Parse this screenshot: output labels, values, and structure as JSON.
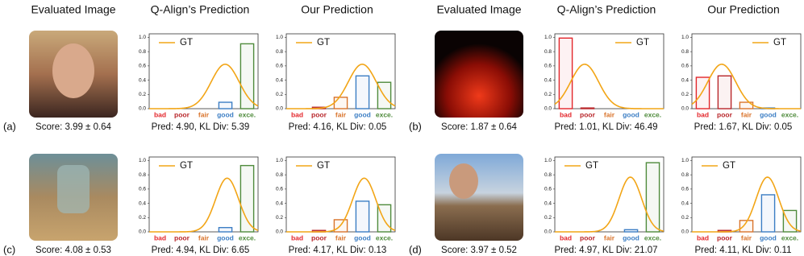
{
  "headers": [
    "Evaluated Image",
    "Q-Align’s Prediction",
    "Our Prediction",
    "Evaluated Image",
    "Q-Align’s Prediction",
    "Our Prediction"
  ],
  "panels": [
    {
      "label": "(a)",
      "score": "Score: 3.99 ± 0.64"
    },
    {
      "label": "(b)",
      "score": "Score: 1.87 ± 0.64"
    },
    {
      "label": "(c)",
      "score": "Score: 4.08 ± 0.53"
    },
    {
      "label": "(d)",
      "score": "Score: 3.97 ± 0.52"
    }
  ],
  "chart_data": [
    {
      "type": "bar",
      "caption": "Pred: 4.90, KL Div: 5.39",
      "categories": [
        "bad",
        "poor",
        "fair",
        "good",
        "exce."
      ],
      "colors": [
        "#e3262b",
        "#b8262a",
        "#d9742c",
        "#3c7ec4",
        "#4f8b3c"
      ],
      "values": [
        0,
        0,
        0,
        0.09,
        0.91
      ],
      "gt": {
        "name": "GT",
        "color": "#f2a516",
        "mean": 3.99,
        "std": 0.64
      },
      "xlim": [
        0.5,
        5.5
      ],
      "ylim": [
        0,
        1.05
      ],
      "yticks": [
        {
          "value": 0,
          "label": "0.0"
        },
        0.2,
        0.4,
        0.6,
        0.8,
        {
          "value": 1,
          "label": "1.0"
        }
      ],
      "legend": "upper left"
    },
    {
      "type": "bar",
      "caption": "Pred: 4.16, KL Div: 0.05",
      "categories": [
        "bad",
        "poor",
        "fair",
        "good",
        "exce."
      ],
      "colors": [
        "#e3262b",
        "#b8262a",
        "#d9742c",
        "#3c7ec4",
        "#4f8b3c"
      ],
      "values": [
        0,
        0.02,
        0.16,
        0.46,
        0.37
      ],
      "gt": {
        "name": "GT",
        "color": "#f2a516",
        "mean": 3.99,
        "std": 0.64
      },
      "xlim": [
        0.5,
        5.5
      ],
      "ylim": [
        0,
        1.05
      ],
      "yticks": [
        {
          "value": 0,
          "label": "0.0"
        },
        0.2,
        0.4,
        0.6,
        0.8,
        {
          "value": 1,
          "label": "1.0"
        }
      ],
      "legend": "upper left"
    },
    {
      "type": "bar",
      "caption": "Pred: 1.01, KL Div: 46.49",
      "categories": [
        "bad",
        "poor",
        "fair",
        "good",
        "exce."
      ],
      "colors": [
        "#e3262b",
        "#b8262a",
        "#d9742c",
        "#3c7ec4",
        "#4f8b3c"
      ],
      "values": [
        0.99,
        0.01,
        0,
        0,
        0
      ],
      "gt": {
        "name": "GT",
        "color": "#f2a516",
        "mean": 1.87,
        "std": 0.64
      },
      "xlim": [
        0.5,
        5.5
      ],
      "ylim": [
        0,
        1.05
      ],
      "yticks": [
        {
          "value": 0,
          "label": "0.0"
        },
        0.2,
        0.4,
        0.6,
        0.8,
        {
          "value": 1,
          "label": "1.0"
        }
      ],
      "legend": "upper right"
    },
    {
      "type": "bar",
      "caption": "Pred: 1.67, KL Div: 0.05",
      "categories": [
        "bad",
        "poor",
        "fair",
        "good",
        "exce."
      ],
      "colors": [
        "#e3262b",
        "#b8262a",
        "#d9742c",
        "#3c7ec4",
        "#4f8b3c"
      ],
      "values": [
        0.44,
        0.46,
        0.09,
        0.01,
        0
      ],
      "gt": {
        "name": "GT",
        "color": "#f2a516",
        "mean": 1.87,
        "std": 0.64
      },
      "xlim": [
        0.5,
        5.5
      ],
      "ylim": [
        0,
        1.05
      ],
      "yticks": [
        {
          "value": 0,
          "label": "0.0"
        },
        0.2,
        0.4,
        0.6,
        0.8,
        {
          "value": 1,
          "label": "1.0"
        }
      ],
      "legend": "upper right"
    },
    {
      "type": "bar",
      "caption": "Pred: 4.94, KL Div: 6.65",
      "categories": [
        "bad",
        "poor",
        "fair",
        "good",
        "exce."
      ],
      "colors": [
        "#e3262b",
        "#b8262a",
        "#d9742c",
        "#3c7ec4",
        "#4f8b3c"
      ],
      "values": [
        0,
        0,
        0,
        0.06,
        0.93
      ],
      "gt": {
        "name": "GT",
        "color": "#f2a516",
        "mean": 4.08,
        "std": 0.53
      },
      "xlim": [
        0.5,
        5.5
      ],
      "ylim": [
        0,
        1.05
      ],
      "yticks": [
        {
          "value": 0,
          "label": "0.0"
        },
        0.2,
        0.4,
        0.6,
        0.8,
        {
          "value": 1,
          "label": "1.0"
        }
      ],
      "legend": "upper left"
    },
    {
      "type": "bar",
      "caption": "Pred: 4.17, KL Div: 0.13",
      "categories": [
        "bad",
        "poor",
        "fair",
        "good",
        "exce."
      ],
      "colors": [
        "#e3262b",
        "#b8262a",
        "#d9742c",
        "#3c7ec4",
        "#4f8b3c"
      ],
      "values": [
        0,
        0.02,
        0.17,
        0.43,
        0.38
      ],
      "gt": {
        "name": "GT",
        "color": "#f2a516",
        "mean": 4.08,
        "std": 0.53
      },
      "xlim": [
        0.5,
        5.5
      ],
      "ylim": [
        0,
        1.05
      ],
      "yticks": [
        {
          "value": 0,
          "label": "0.0"
        },
        0.2,
        0.4,
        0.6,
        0.8,
        {
          "value": 1,
          "label": "1.0"
        }
      ],
      "legend": "upper left"
    },
    {
      "type": "bar",
      "caption": "Pred: 4.97, KL Div: 21.07",
      "categories": [
        "bad",
        "poor",
        "fair",
        "good",
        "exce."
      ],
      "colors": [
        "#e3262b",
        "#b8262a",
        "#d9742c",
        "#3c7ec4",
        "#4f8b3c"
      ],
      "values": [
        0,
        0,
        0,
        0.03,
        0.97
      ],
      "gt": {
        "name": "GT",
        "color": "#f2a516",
        "mean": 3.97,
        "std": 0.52
      },
      "xlim": [
        0.5,
        5.5
      ],
      "ylim": [
        0,
        1.05
      ],
      "yticks": [
        {
          "value": 0,
          "label": "0.0"
        },
        0.2,
        0.4,
        0.6,
        0.8,
        {
          "value": 1,
          "label": "1.0"
        }
      ],
      "legend": "upper left"
    },
    {
      "type": "bar",
      "caption": "Pred: 4.11, KL Div: 0.11",
      "categories": [
        "bad",
        "poor",
        "fair",
        "good",
        "exce."
      ],
      "colors": [
        "#e3262b",
        "#b8262a",
        "#d9742c",
        "#3c7ec4",
        "#4f8b3c"
      ],
      "values": [
        0,
        0.02,
        0.16,
        0.52,
        0.3
      ],
      "gt": {
        "name": "GT",
        "color": "#f2a516",
        "mean": 3.97,
        "std": 0.52
      },
      "xlim": [
        0.5,
        5.5
      ],
      "ylim": [
        0,
        1.05
      ],
      "yticks": [
        {
          "value": 0,
          "label": "0.0"
        },
        0.2,
        0.4,
        0.6,
        0.8,
        {
          "value": 1,
          "label": "1.0"
        }
      ],
      "legend": "upper left"
    }
  ]
}
